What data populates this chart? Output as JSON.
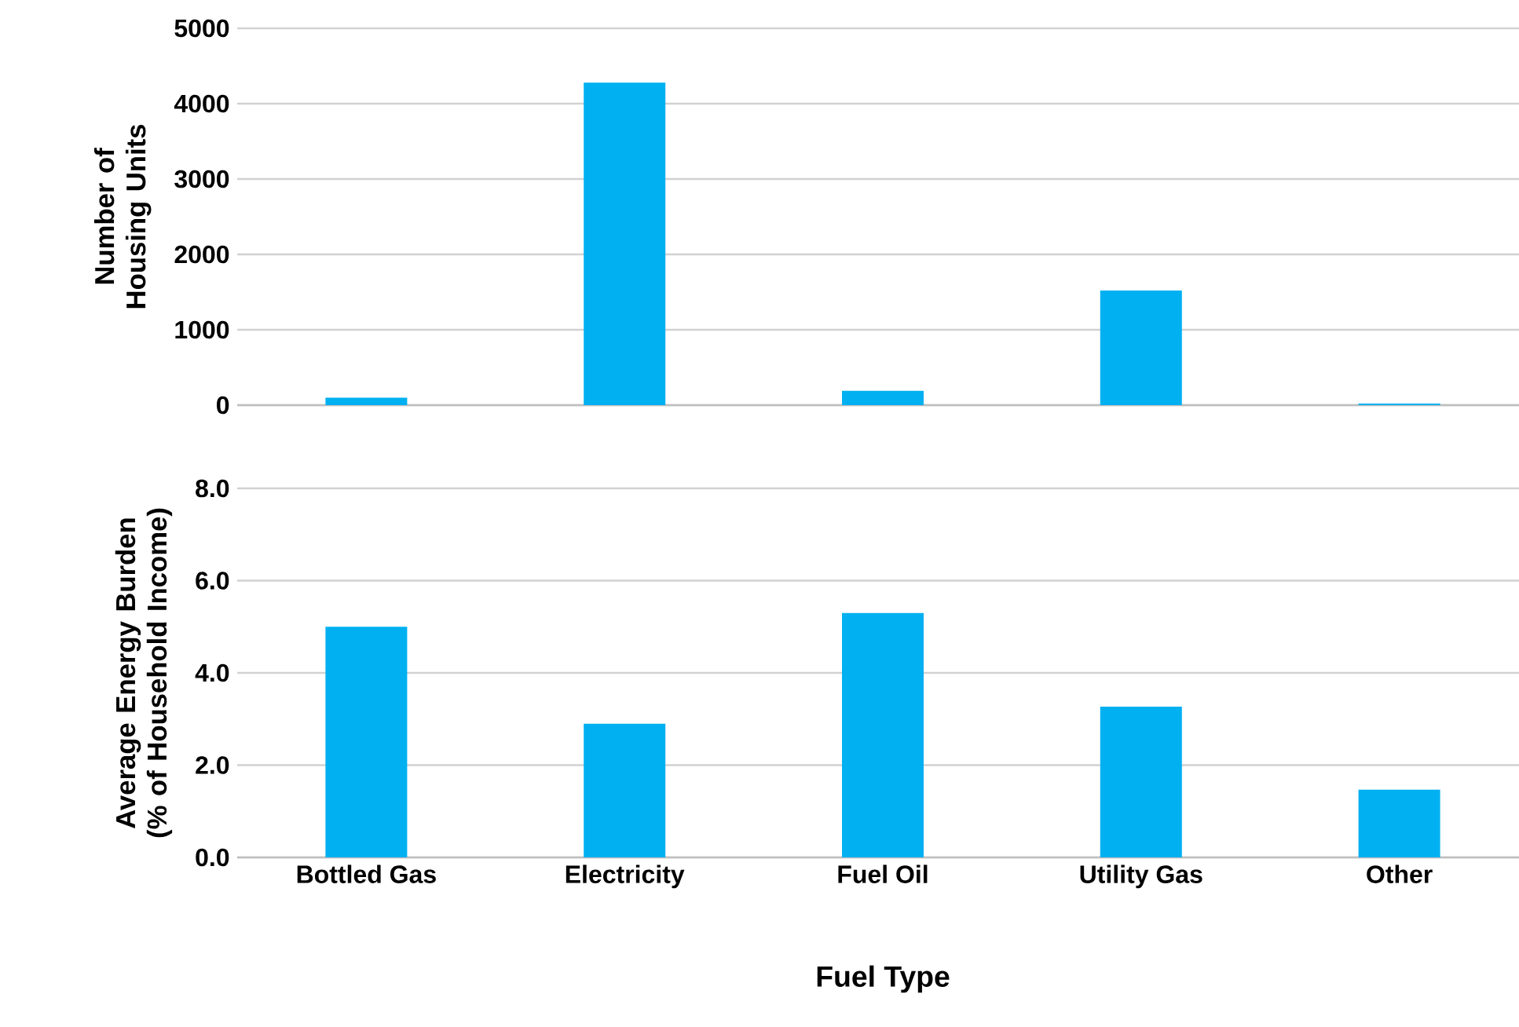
{
  "chart_data": [
    {
      "type": "bar",
      "ylabel": "Number of Housing Units",
      "categories": [
        null,
        null,
        null,
        null,
        null
      ],
      "values": [
        100,
        4280,
        190,
        1520,
        20
      ],
      "color": "#00b0f0",
      "ylim": [
        0,
        5000
      ],
      "yticks": [
        0,
        1000,
        2000,
        3000,
        4000,
        5000
      ],
      "grid": "y",
      "tick_labels": "y"
    },
    {
      "type": "bar",
      "xlabel": "Fuel Type",
      "ylabel": "Average Energy Burden (% of Household Income)",
      "categories": [
        "Bottled Gas",
        "Electricity",
        "Fuel Oil",
        "Utility Gas",
        "Other"
      ],
      "values": [
        5.0,
        2.9,
        5.3,
        3.27,
        1.47
      ],
      "color": "#00b0f0",
      "ylim": [
        0,
        8
      ],
      "yticks": [
        {
          "value": 0,
          "label": "0.0"
        },
        {
          "value": 2,
          "label": "2.0"
        },
        {
          "value": 4,
          "label": "4.0"
        },
        {
          "value": 6,
          "label": "6.0"
        },
        {
          "value": 8,
          "label": "8.0"
        }
      ],
      "grid": "y"
    }
  ]
}
